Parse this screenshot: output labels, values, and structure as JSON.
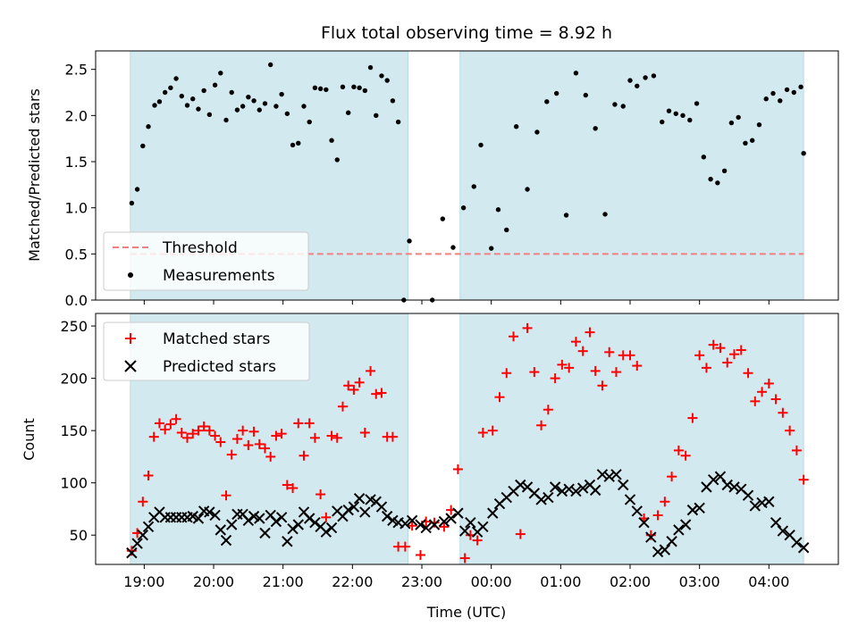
{
  "chart_data": [
    {
      "type": "scatter",
      "title": "Flux total observing time = 8.92 h",
      "xlabel": "",
      "ylabel": "Matched/Predicted stars",
      "xlim": [
        18.3,
        29.0
      ],
      "ylim": [
        0,
        2.7
      ],
      "yticks": [
        0.0,
        0.5,
        1.0,
        1.5,
        2.0,
        2.5
      ],
      "ytick_labels": [
        "0.0",
        "0.5",
        "1.0",
        "1.5",
        "2.0",
        "2.5"
      ],
      "shaded_intervals": [
        [
          18.8,
          22.8
        ],
        [
          23.55,
          28.5
        ]
      ],
      "threshold": 0.5,
      "legend": {
        "position": "lower-left",
        "entries": [
          {
            "label": "Threshold",
            "style": "dashed-line",
            "color": "#f08080"
          },
          {
            "label": "Measurements",
            "style": "dot",
            "color": "#000000"
          }
        ]
      },
      "series": [
        {
          "name": "Measurements",
          "x": [
            18.82,
            18.9,
            18.98,
            19.06,
            19.15,
            19.22,
            19.3,
            19.38,
            19.46,
            19.54,
            19.62,
            19.7,
            19.78,
            19.86,
            19.94,
            20.02,
            20.1,
            20.18,
            20.26,
            20.34,
            20.42,
            20.5,
            20.58,
            20.66,
            20.74,
            20.82,
            20.9,
            20.98,
            21.06,
            21.14,
            21.22,
            21.3,
            21.38,
            21.46,
            21.54,
            21.62,
            21.7,
            21.78,
            21.86,
            21.94,
            22.02,
            22.1,
            22.18,
            22.26,
            22.34,
            22.42,
            22.5,
            22.58,
            22.66,
            22.74,
            22.82,
            23.15,
            23.3,
            23.45,
            23.6,
            23.75,
            23.85,
            24.0,
            24.1,
            24.22,
            24.36,
            24.52,
            24.66,
            24.8,
            24.94,
            25.08,
            25.22,
            25.36,
            25.5,
            25.64,
            25.78,
            25.9,
            26.0,
            26.1,
            26.22,
            26.34,
            26.46,
            26.56,
            26.66,
            26.76,
            26.86,
            26.96,
            27.06,
            27.16,
            27.26,
            27.36,
            27.46,
            27.56,
            27.66,
            27.76,
            27.86,
            27.96,
            28.06,
            28.16,
            28.26,
            28.36,
            28.46,
            28.5
          ],
          "y": [
            1.05,
            1.2,
            1.67,
            1.88,
            2.11,
            2.15,
            2.25,
            2.3,
            2.4,
            2.21,
            2.11,
            2.18,
            2.07,
            2.27,
            2.01,
            2.33,
            2.46,
            1.95,
            2.25,
            2.06,
            2.1,
            2.2,
            2.16,
            2.06,
            2.13,
            2.55,
            2.1,
            2.23,
            2.02,
            1.68,
            1.7,
            2.1,
            1.93,
            2.3,
            2.29,
            2.28,
            1.73,
            1.52,
            2.31,
            2.03,
            2.31,
            2.3,
            2.27,
            2.52,
            2.0,
            2.43,
            2.38,
            2.16,
            1.93,
            0.0,
            0.64,
            0.0,
            0.88,
            0.57,
            1.0,
            1.23,
            1.68,
            0.56,
            0.98,
            0.76,
            1.88,
            1.2,
            1.82,
            2.15,
            2.24,
            0.92,
            2.46,
            2.22,
            1.86,
            0.93,
            2.12,
            2.1,
            2.38,
            2.32,
            2.41,
            2.43,
            1.93,
            2.05,
            2.02,
            2.0,
            1.95,
            2.13,
            1.55,
            1.31,
            1.27,
            1.4,
            1.92,
            1.98,
            1.7,
            1.73,
            1.9,
            2.18,
            2.24,
            2.16,
            2.28,
            2.25,
            2.31,
            1.59
          ]
        }
      ]
    },
    {
      "type": "scatter",
      "title": "",
      "xlabel": "Time (UTC)",
      "ylabel": "Count",
      "xlim": [
        18.3,
        29.0
      ],
      "ylim": [
        22,
        262
      ],
      "yticks": [
        50,
        100,
        150,
        200,
        250
      ],
      "ytick_labels": [
        "50",
        "100",
        "150",
        "200",
        "250"
      ],
      "xticks": [
        19,
        20,
        21,
        22,
        23,
        24,
        25,
        26,
        27,
        28
      ],
      "xtick_labels": [
        "19:00",
        "20:00",
        "21:00",
        "22:00",
        "23:00",
        "00:00",
        "01:00",
        "02:00",
        "03:00",
        "04:00"
      ],
      "shaded_intervals": [
        [
          18.8,
          22.8
        ],
        [
          23.55,
          28.5
        ]
      ],
      "legend": {
        "position": "top-left",
        "entries": [
          {
            "label": "Matched stars",
            "style": "plus",
            "color": "#ff0000"
          },
          {
            "label": "Predicted stars",
            "style": "x",
            "color": "#000000"
          }
        ]
      },
      "series": [
        {
          "name": "Matched stars",
          "x": [
            18.82,
            18.9,
            18.98,
            19.06,
            19.14,
            19.22,
            19.3,
            19.38,
            19.46,
            19.54,
            19.62,
            19.7,
            19.78,
            19.86,
            19.94,
            20.02,
            20.1,
            20.18,
            20.26,
            20.34,
            20.42,
            20.5,
            20.58,
            20.66,
            20.74,
            20.82,
            20.9,
            20.98,
            21.06,
            21.14,
            21.22,
            21.3,
            21.38,
            21.46,
            21.54,
            21.62,
            21.7,
            21.78,
            21.86,
            21.94,
            22.02,
            22.1,
            22.18,
            22.26,
            22.34,
            22.42,
            22.5,
            22.58,
            22.66,
            22.76,
            22.86,
            22.98,
            23.06,
            23.18,
            23.32,
            23.42,
            23.52,
            23.62,
            23.7,
            23.8,
            23.88,
            24.02,
            24.12,
            24.22,
            24.32,
            24.42,
            24.52,
            24.62,
            24.72,
            24.82,
            24.92,
            25.02,
            25.12,
            25.22,
            25.32,
            25.42,
            25.5,
            25.6,
            25.7,
            25.8,
            25.9,
            26.0,
            26.1,
            26.2,
            26.3,
            26.4,
            26.5,
            26.6,
            26.7,
            26.8,
            26.9,
            27.0,
            27.1,
            27.2,
            27.3,
            27.4,
            27.5,
            27.6,
            27.7,
            27.8,
            27.9,
            28.0,
            28.1,
            28.2,
            28.3,
            28.4,
            28.5
          ],
          "y": [
            35,
            52,
            82,
            107,
            144,
            157,
            151,
            156,
            161,
            148,
            143,
            147,
            150,
            154,
            150,
            145,
            139,
            88,
            127,
            142,
            150,
            136,
            149,
            137,
            133,
            125,
            145,
            147,
            98,
            95,
            157,
            126,
            157,
            143,
            89,
            67,
            145,
            143,
            173,
            193,
            189,
            196,
            148,
            207,
            185,
            186,
            144,
            144,
            39,
            39,
            59,
            31,
            63,
            62,
            58,
            74,
            113,
            28,
            50,
            45,
            148,
            150,
            182,
            205,
            240,
            51,
            248,
            206,
            155,
            170,
            200,
            213,
            210,
            235,
            226,
            244,
            207,
            193,
            225,
            206,
            222,
            222,
            212,
            66,
            50,
            69,
            82,
            106,
            131,
            126,
            162,
            222,
            210,
            232,
            229,
            215,
            223,
            227,
            205,
            178,
            187,
            195,
            180,
            167,
            150,
            131,
            103
          ],
          "color": "#ff0000",
          "marker": "+"
        },
        {
          "name": "Predicted stars",
          "x": [
            18.82,
            18.9,
            18.98,
            19.06,
            19.14,
            19.22,
            19.3,
            19.38,
            19.46,
            19.54,
            19.62,
            19.7,
            19.78,
            19.86,
            19.94,
            20.02,
            20.1,
            20.18,
            20.26,
            20.34,
            20.42,
            20.5,
            20.58,
            20.66,
            20.74,
            20.82,
            20.9,
            20.98,
            21.06,
            21.14,
            21.22,
            21.3,
            21.38,
            21.46,
            21.54,
            21.62,
            21.7,
            21.78,
            21.86,
            21.94,
            22.02,
            22.1,
            22.18,
            22.26,
            22.34,
            22.42,
            22.5,
            22.58,
            22.66,
            22.76,
            22.86,
            22.98,
            23.06,
            23.18,
            23.32,
            23.42,
            23.52,
            23.62,
            23.7,
            23.8,
            23.88,
            24.02,
            24.12,
            24.22,
            24.32,
            24.42,
            24.52,
            24.62,
            24.72,
            24.82,
            24.92,
            25.02,
            25.12,
            25.22,
            25.32,
            25.42,
            25.5,
            25.6,
            25.7,
            25.8,
            25.9,
            26.0,
            26.1,
            26.2,
            26.3,
            26.4,
            26.5,
            26.6,
            26.7,
            26.8,
            26.9,
            27.0,
            27.1,
            27.2,
            27.3,
            27.4,
            27.5,
            27.6,
            27.7,
            27.8,
            27.9,
            28.0,
            28.1,
            28.2,
            28.3,
            28.4,
            28.5
          ],
          "y": [
            33,
            42,
            50,
            58,
            67,
            72,
            67,
            67,
            67,
            67,
            67,
            68,
            66,
            73,
            72,
            69,
            55,
            45,
            60,
            70,
            70,
            64,
            68,
            66,
            52,
            69,
            63,
            67,
            44,
            56,
            60,
            72,
            66,
            62,
            58,
            53,
            57,
            73,
            68,
            74,
            77,
            85,
            72,
            84,
            82,
            77,
            68,
            64,
            62,
            61,
            64,
            60,
            57,
            60,
            63,
            66,
            71,
            54,
            62,
            53,
            58,
            71,
            80,
            86,
            92,
            98,
            96,
            90,
            84,
            86,
            96,
            92,
            94,
            92,
            95,
            98,
            93,
            108,
            106,
            108,
            98,
            84,
            73,
            62,
            48,
            34,
            36,
            44,
            55,
            60,
            74,
            76,
            96,
            103,
            106,
            98,
            96,
            94,
            88,
            78,
            81,
            82,
            62,
            54,
            50,
            43,
            38
          ],
          "color": "#000000",
          "marker": "x"
        }
      ]
    }
  ]
}
